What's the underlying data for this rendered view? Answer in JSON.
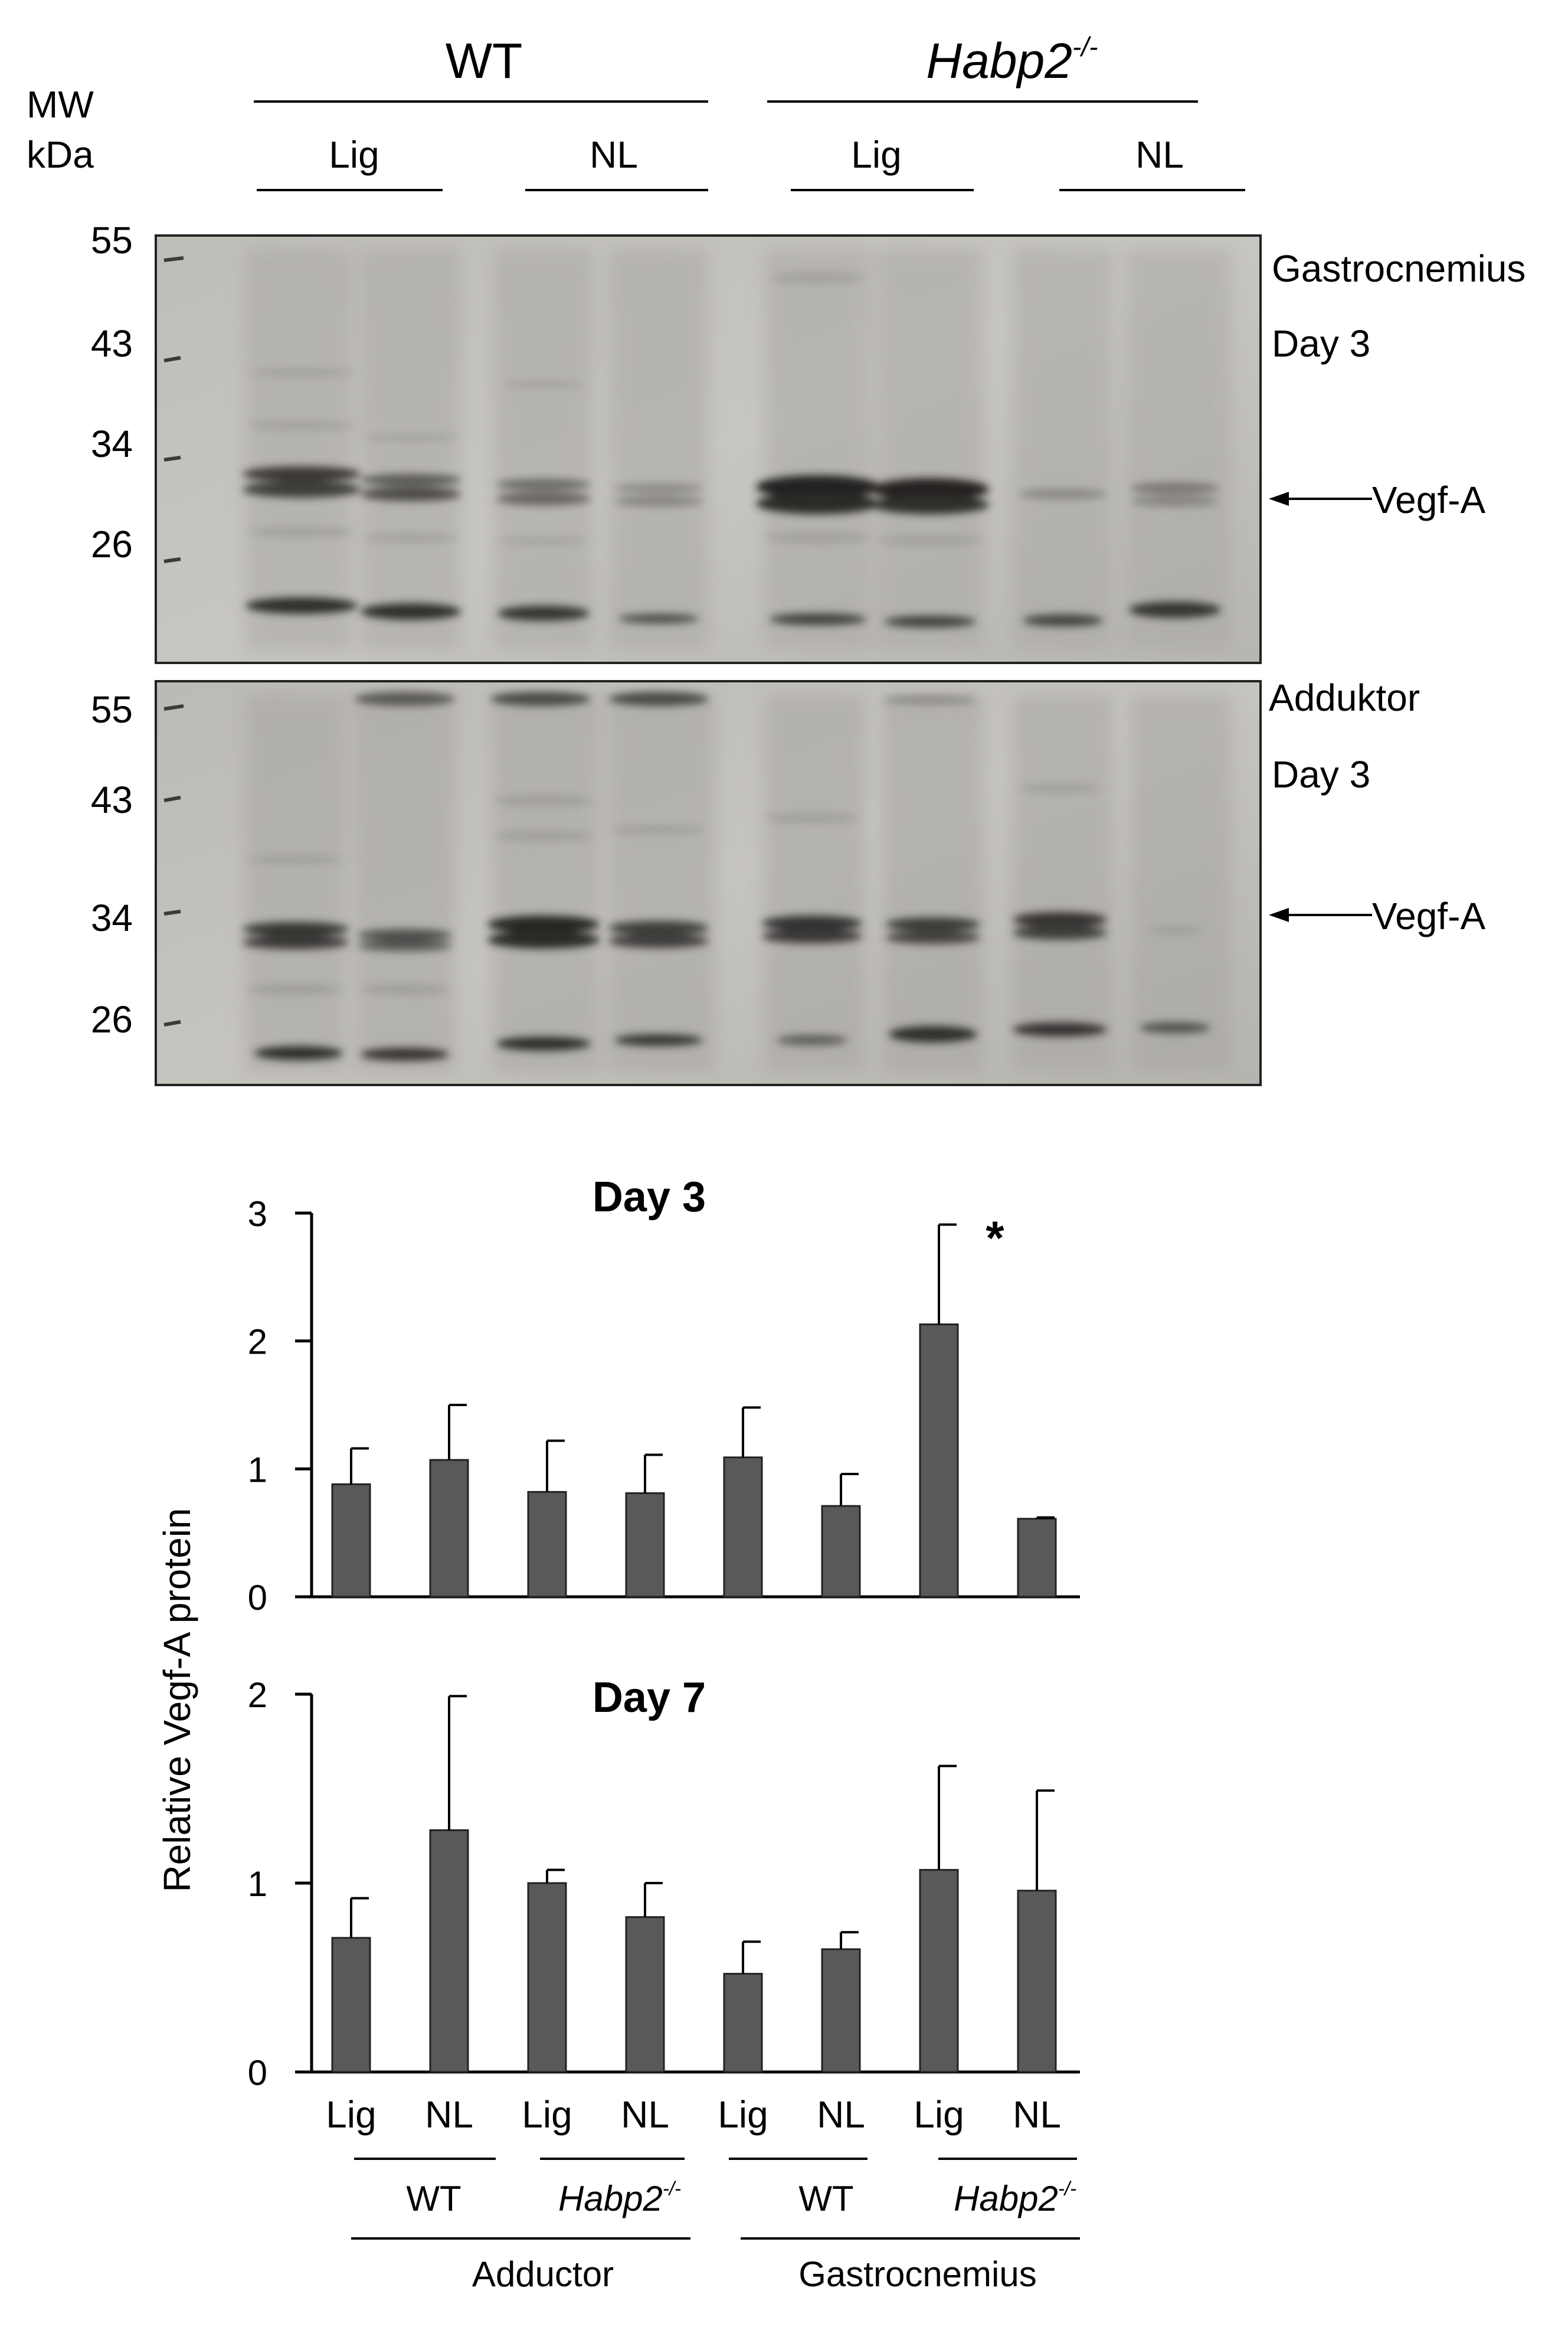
{
  "header": {
    "mw_line1": "MW",
    "mw_line2": "kDa",
    "genotype_wt": "WT",
    "genotype_ko_base": "Habp2",
    "genotype_ko_sup": "-/-",
    "lane_lig": "Lig",
    "lane_nl": "NL"
  },
  "blot1": {
    "markers": [
      "55",
      "43",
      "34",
      "26"
    ],
    "tissue": "Gastrocnemius",
    "day": "Day 3",
    "band_label": "Vegf-A"
  },
  "blot2": {
    "markers": [
      "55",
      "43",
      "34",
      "26"
    ],
    "tissue": "Adduktor",
    "day": "Day 3",
    "band_label": "Vegf-A"
  },
  "colors": {
    "bar": "#595959",
    "axis": "#000000",
    "blot_bg": "#b9b7b2"
  },
  "chart_data": [
    {
      "type": "bar",
      "title": "Day 3",
      "ylabel": "Relative Vegf-A protein",
      "ylim": [
        0,
        3
      ],
      "yticks": [
        "0",
        "1",
        "2",
        "3"
      ],
      "categories": [
        "Lig",
        "NL",
        "Lig",
        "NL",
        "Lig",
        "NL",
        "Lig",
        "NL"
      ],
      "values": [
        0.88,
        1.07,
        0.82,
        0.81,
        1.09,
        0.71,
        2.13,
        0.61
      ],
      "errors": [
        0.28,
        0.43,
        0.4,
        0.3,
        0.39,
        0.25,
        0.78,
        0.01
      ],
      "significance": [
        {
          "index": 6,
          "label": "*"
        }
      ]
    },
    {
      "type": "bar",
      "title": "Day 7",
      "ylabel": "Relative Vegf-A protein",
      "ylim": [
        0,
        2
      ],
      "yticks": [
        "0",
        "1",
        "2"
      ],
      "categories": [
        "Lig",
        "NL",
        "Lig",
        "NL",
        "Lig",
        "NL",
        "Lig",
        "NL"
      ],
      "values": [
        0.71,
        1.28,
        1.0,
        0.82,
        0.52,
        0.65,
        1.07,
        0.96
      ],
      "errors": [
        0.21,
        0.71,
        0.07,
        0.18,
        0.17,
        0.09,
        0.55,
        0.53
      ]
    }
  ],
  "groups": {
    "wt": "WT",
    "ko_base": "Habp2",
    "ko_sup": "-/-",
    "adductor": "Adductor",
    "gastrocnemius": "Gastrocnemius"
  }
}
